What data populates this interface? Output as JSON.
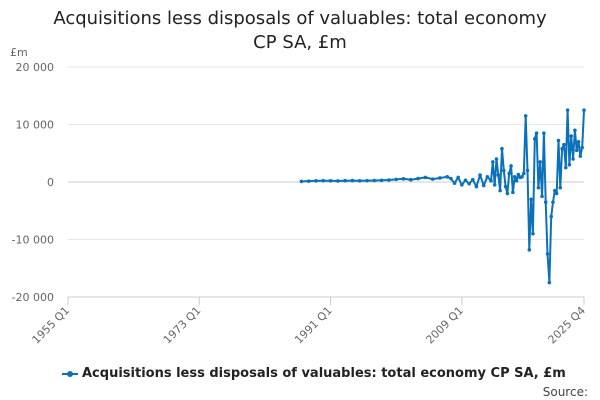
{
  "chart_data": {
    "type": "line",
    "title": "Acquisitions less disposals of valuables: total economy CP SA, £m",
    "ylabel": "£m",
    "xlabel": "",
    "ylim": [
      -20000,
      20000
    ],
    "yticks": [
      -20000,
      -10000,
      0,
      10000,
      20000
    ],
    "ytick_labels": [
      "-20 000",
      "-10 000",
      "0",
      "10 000",
      "20 000"
    ],
    "xlim": [
      1955.0,
      2025.75
    ],
    "xticks": [
      1955.0,
      1973.0,
      1991.0,
      2009.0,
      2025.75
    ],
    "xtick_labels": [
      "1955 Q1",
      "1973 Q1",
      "1991 Q1",
      "2009 Q1",
      "2025 Q4"
    ],
    "grid": true,
    "legend_position": "bottom",
    "color": "#0b72b9",
    "series": [
      {
        "name": "Acquisitions less disposals of valuables: total economy CP SA, £m",
        "x": [
          1987.0,
          1988.0,
          1989.0,
          1990.0,
          1991.0,
          1992.0,
          1993.0,
          1994.0,
          1995.0,
          1996.0,
          1997.0,
          1998.0,
          1999.0,
          2000.0,
          2001.0,
          2002.0,
          2003.0,
          2004.0,
          2005.0,
          2006.0,
          2007.0,
          2007.5,
          2008.0,
          2008.5,
          2009.0,
          2009.5,
          2010.0,
          2010.5,
          2011.0,
          2011.5,
          2012.0,
          2012.5,
          2013.0,
          2013.25,
          2013.5,
          2013.75,
          2014.0,
          2014.25,
          2014.5,
          2014.75,
          2015.0,
          2015.25,
          2015.5,
          2015.75,
          2016.0,
          2016.25,
          2016.5,
          2016.75,
          2017.0,
          2017.25,
          2017.5,
          2017.75,
          2018.0,
          2018.25,
          2018.5,
          2018.75,
          2019.0,
          2019.25,
          2019.5,
          2019.75,
          2020.0,
          2020.25,
          2020.5,
          2020.75,
          2021.0,
          2021.25,
          2021.5,
          2021.75,
          2022.0,
          2022.25,
          2022.5,
          2022.75,
          2023.0,
          2023.25,
          2023.5,
          2023.75,
          2024.0,
          2024.25,
          2024.5,
          2024.75,
          2025.0,
          2025.25,
          2025.5,
          2025.75
        ],
        "values": [
          100,
          150,
          200,
          220,
          200,
          180,
          220,
          250,
          200,
          240,
          260,
          300,
          350,
          450,
          550,
          400,
          600,
          800,
          500,
          700,
          900,
          600,
          -200,
          800,
          -500,
          300,
          -300,
          400,
          -800,
          1200,
          -600,
          900,
          200,
          3500,
          -500,
          4000,
          1200,
          -1500,
          5800,
          2000,
          -800,
          -2000,
          1500,
          2800,
          -1800,
          900,
          200,
          1300,
          800,
          900,
          1500,
          11500,
          2000,
          -11800,
          -3000,
          -9000,
          7500,
          8500,
          -1000,
          3500,
          -2500,
          8500,
          -3500,
          -12500,
          -17500,
          -6000,
          -3500,
          -1500,
          -2000,
          7200,
          -1000,
          5800,
          6500,
          2500,
          12500,
          3000,
          8000,
          4000,
          9000,
          5500,
          7000,
          4500,
          6000,
          12500
        ]
      }
    ]
  },
  "source_label": "Source:"
}
